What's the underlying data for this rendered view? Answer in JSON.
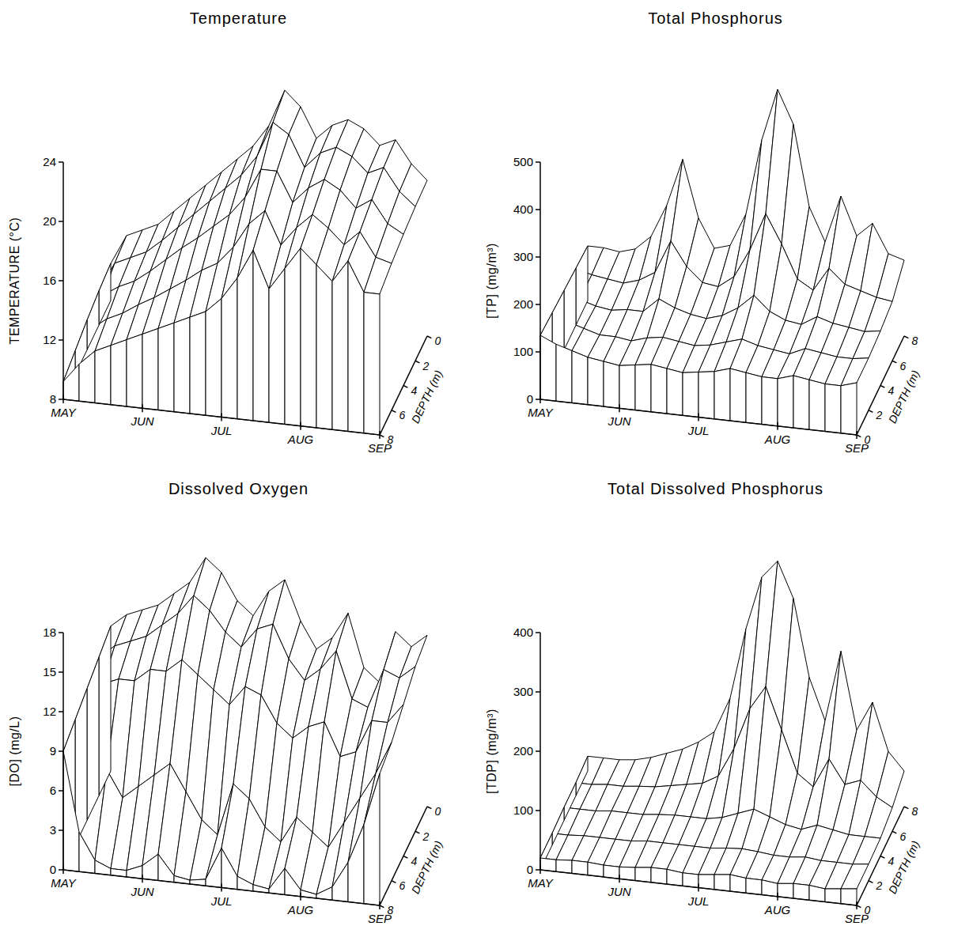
{
  "chart_data": [
    {
      "type": "surface",
      "title": "Temperature",
      "y_label": "TEMPERATURE (°C)",
      "depth_label": "DEPTH (m)",
      "color": "#000000",
      "x": [
        0,
        0.2,
        0.4,
        0.6,
        0.8,
        1,
        1.2,
        1.4,
        1.6,
        1.8,
        2,
        2.2,
        2.4,
        2.6,
        2.8,
        3,
        3.2,
        3.4,
        3.6,
        3.8,
        4
      ],
      "xlim": [
        0,
        4
      ],
      "xticks": [
        {
          "value": 0,
          "label": "MAY"
        },
        {
          "value": 1,
          "label": "JUN"
        },
        {
          "value": 2,
          "label": "JUL"
        },
        {
          "value": 3,
          "label": "AUG"
        },
        {
          "value": 4,
          "label": "SEP"
        }
      ],
      "ylim": [
        8,
        24
      ],
      "yticks": [
        8,
        12,
        16,
        20,
        24
      ],
      "depth": [
        0,
        2,
        4,
        6,
        8
      ],
      "depth_lim": [
        8,
        0
      ],
      "depth_ticks": [
        0,
        2,
        4,
        6,
        8
      ],
      "values": [
        [
          10.5,
          12.5,
          13,
          13.5,
          14.5,
          15.5,
          16.5,
          17.5,
          18.5,
          19.5,
          21,
          23.5,
          22.5,
          20.5,
          21.5,
          22,
          21.5,
          20.5,
          21,
          19.5,
          18.5
        ],
        [
          10.3,
          12.3,
          12.8,
          13.3,
          14.2,
          15.2,
          16.2,
          17.2,
          18.2,
          19.2,
          20.6,
          23,
          22.3,
          20.2,
          21.3,
          21.8,
          21.3,
          20.3,
          20.8,
          19.3,
          18.4
        ],
        [
          10,
          11.8,
          12.5,
          13,
          13.8,
          14.7,
          15.6,
          16.4,
          17.3,
          18.2,
          19.5,
          21.5,
          21.5,
          19.5,
          20.6,
          21.3,
          20.7,
          19.6,
          20.3,
          18.8,
          18.2
        ],
        [
          9.6,
          11.2,
          12,
          12.5,
          13.2,
          13.8,
          14.5,
          15.2,
          16,
          16.6,
          17.8,
          19.5,
          20.5,
          18.3,
          19.6,
          20.6,
          19.8,
          18.8,
          19.8,
          18.2,
          17.9
        ],
        [
          9.2,
          10.5,
          11.5,
          12,
          12.5,
          13,
          13.5,
          14,
          14.5,
          15,
          16,
          17.5,
          19.5,
          17,
          18.5,
          20,
          19,
          18,
          19.5,
          17.5,
          17.5
        ]
      ]
    },
    {
      "type": "surface",
      "title": "Total Phosphorus",
      "y_label": "[TP] (mg/m³)",
      "depth_label": "DEPTH (m)",
      "color": "#000000",
      "x": [
        0,
        0.2,
        0.4,
        0.6,
        0.8,
        1,
        1.2,
        1.4,
        1.6,
        1.8,
        2,
        2.2,
        2.4,
        2.6,
        2.8,
        3,
        3.2,
        3.4,
        3.6,
        3.8,
        4
      ],
      "xlim": [
        0,
        4
      ],
      "xticks": [
        {
          "value": 0,
          "label": "MAY"
        },
        {
          "value": 1,
          "label": "JUN"
        },
        {
          "value": 2,
          "label": "JUL"
        },
        {
          "value": 3,
          "label": "AUG"
        },
        {
          "value": 4,
          "label": "SEP"
        }
      ],
      "ylim": [
        0,
        500
      ],
      "yticks": [
        0,
        100,
        200,
        300,
        400,
        500
      ],
      "depth": [
        0,
        2,
        4,
        6,
        8
      ],
      "depth_lim": [
        0,
        8
      ],
      "depth_ticks": [
        0,
        2,
        4,
        6,
        8
      ],
      "values": [
        [
          135,
          120,
          110,
          100,
          95,
          90,
          95,
          100,
          95,
          90,
          95,
          100,
          110,
          105,
          100,
          100,
          110,
          105,
          100,
          100,
          110
        ],
        [
          130,
          115,
          105,
          95,
          95,
          90,
          100,
          105,
          100,
          95,
          100,
          110,
          120,
          110,
          105,
          100,
          115,
          110,
          105,
          105,
          110
        ],
        [
          125,
          110,
          100,
          95,
          100,
          100,
          130,
          115,
          105,
          100,
          110,
          130,
          160,
          130,
          115,
          110,
          130,
          120,
          115,
          110,
          115
        ],
        [
          120,
          110,
          105,
          100,
          110,
          130,
          200,
          150,
          120,
          115,
          140,
          200,
          280,
          220,
          150,
          130,
          180,
          150,
          140,
          130,
          125
        ],
        [
          115,
          115,
          110,
          120,
          150,
          220,
          320,
          200,
          140,
          150,
          220,
          380,
          490,
          420,
          250,
          180,
          280,
          200,
          230,
          170,
          160
        ]
      ]
    },
    {
      "type": "surface",
      "title": "Dissolved Oxygen",
      "y_label": "[DO] (mg/L)",
      "depth_label": "DEPTH (m)",
      "color": "#000000",
      "x": [
        0,
        0.2,
        0.4,
        0.6,
        0.8,
        1,
        1.2,
        1.4,
        1.6,
        1.8,
        2,
        2.2,
        2.4,
        2.6,
        2.8,
        3,
        3.2,
        3.4,
        3.6,
        3.8,
        4
      ],
      "xlim": [
        0,
        4
      ],
      "xticks": [
        {
          "value": 0,
          "label": "MAY"
        },
        {
          "value": 1,
          "label": "JUN"
        },
        {
          "value": 2,
          "label": "JUL"
        },
        {
          "value": 3,
          "label": "AUG"
        },
        {
          "value": 4,
          "label": "SEP"
        }
      ],
      "ylim": [
        0,
        18
      ],
      "yticks": [
        0,
        3,
        6,
        9,
        12,
        15,
        18
      ],
      "depth": [
        0,
        2,
        4,
        6,
        8
      ],
      "depth_lim": [
        8,
        0
      ],
      "depth_ticks": [
        0,
        2,
        4,
        6,
        8
      ],
      "values": [
        [
          11,
          12,
          12.5,
          13,
          14,
          15,
          17,
          16,
          14,
          13,
          15,
          16,
          13,
          11,
          12,
          14,
          10,
          9,
          13,
          12,
          13
        ],
        [
          10.5,
          11.5,
          12,
          12.5,
          13.5,
          14.5,
          16,
          15,
          13.5,
          12.5,
          14,
          14.5,
          12,
          10.5,
          11.5,
          13,
          9.5,
          9,
          12,
          11.5,
          12.5
        ],
        [
          10,
          10.5,
          11,
          11,
          12,
          12,
          13,
          12,
          11,
          10,
          11.5,
          11,
          9,
          8,
          9,
          9.5,
          7,
          7.5,
          10,
          10,
          11.5
        ],
        [
          9.5,
          8,
          6,
          4,
          5,
          6,
          7,
          5,
          3,
          2,
          6,
          5,
          3,
          2,
          4,
          3,
          2,
          4,
          6,
          8,
          10.5
        ],
        [
          9,
          3,
          1,
          0.5,
          0.5,
          1,
          2,
          0.5,
          0.3,
          0.5,
          3,
          1,
          0.5,
          0.3,
          2,
          0.5,
          0.3,
          1,
          3,
          6,
          10
        ]
      ]
    },
    {
      "type": "surface",
      "title": "Total Dissolved Phosphorus",
      "y_label": "[TDP] (mg/m³)",
      "depth_label": "DEPTH (m)",
      "color": "#000000",
      "x": [
        0,
        0.2,
        0.4,
        0.6,
        0.8,
        1,
        1.2,
        1.4,
        1.6,
        1.8,
        2,
        2.2,
        2.4,
        2.6,
        2.8,
        3,
        3.2,
        3.4,
        3.6,
        3.8,
        4
      ],
      "xlim": [
        0,
        4
      ],
      "xticks": [
        {
          "value": 0,
          "label": "MAY"
        },
        {
          "value": 1,
          "label": "JUN"
        },
        {
          "value": 2,
          "label": "JUL"
        },
        {
          "value": 3,
          "label": "AUG"
        },
        {
          "value": 4,
          "label": "SEP"
        }
      ],
      "ylim": [
        0,
        400
      ],
      "yticks": [
        0,
        100,
        200,
        300,
        400
      ],
      "depth": [
        0,
        2,
        4,
        6,
        8
      ],
      "depth_lim": [
        0,
        8
      ],
      "depth_ticks": [
        0,
        2,
        4,
        6,
        8
      ],
      "values": [
        [
          20,
          20,
          22,
          22,
          20,
          20,
          22,
          25,
          25,
          22,
          22,
          25,
          28,
          25,
          25,
          22,
          25,
          25,
          22,
          25,
          28
        ],
        [
          20,
          20,
          22,
          22,
          22,
          22,
          25,
          25,
          25,
          25,
          25,
          28,
          30,
          28,
          25,
          25,
          28,
          25,
          25,
          25,
          28
        ],
        [
          22,
          22,
          22,
          25,
          25,
          25,
          28,
          30,
          30,
          30,
          35,
          45,
          55,
          45,
          35,
          30,
          40,
          35,
          30,
          30,
          30
        ],
        [
          22,
          22,
          25,
          25,
          28,
          30,
          35,
          40,
          45,
          60,
          110,
          180,
          220,
          150,
          80,
          60,
          110,
          70,
          80,
          55,
          40
        ],
        [
          25,
          25,
          25,
          28,
          35,
          45,
          55,
          70,
          90,
          150,
          270,
          360,
          390,
          330,
          200,
          130,
          250,
          120,
          170,
          90,
          60
        ]
      ]
    }
  ]
}
